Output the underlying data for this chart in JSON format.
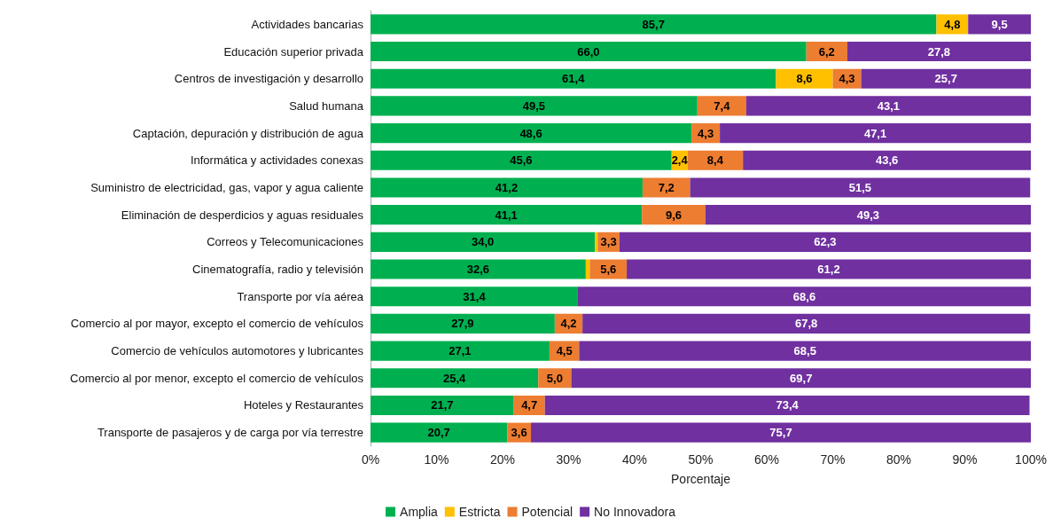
{
  "chart_data": {
    "type": "bar",
    "orientation": "horizontal",
    "stacked": true,
    "xlabel": "Porcentaje",
    "legend": "bottom",
    "grid": false,
    "categories": [
      "Actividades bancarias",
      "Educación superior privada",
      "Centros de investigación y desarrollo",
      "Salud humana",
      "Captación, depuración y distribución de agua",
      "Informática y actividades conexas",
      "Suministro de electricidad, gas, vapor y agua caliente",
      "Eliminación de desperdicios y aguas residuales",
      "Correos y Telecomunicaciones",
      "Cinematografía, radio y televisión",
      "Transporte por vía aérea",
      "Comercio al por mayor, excepto el comercio de vehículos",
      "Comercio de vehículos automotores y lubricantes",
      "Comercio al por menor, excepto el comercio de vehículos",
      "Hoteles y Restaurantes",
      "Transporte de pasajeros y de carga por vía terrestre"
    ],
    "xlim": [
      0,
      100
    ],
    "xticks": [
      {
        "value": 0,
        "label": "0%"
      },
      {
        "value": 10,
        "label": "10%"
      },
      {
        "value": 20,
        "label": "20%"
      },
      {
        "value": 30,
        "label": "30%"
      },
      {
        "value": 40,
        "label": "40%"
      },
      {
        "value": 50,
        "label": "50%"
      },
      {
        "value": 60,
        "label": "60%"
      },
      {
        "value": 70,
        "label": "70%"
      },
      {
        "value": 80,
        "label": "80%"
      },
      {
        "value": 90,
        "label": "90%"
      },
      {
        "value": 100,
        "label": "100%"
      }
    ],
    "series": [
      {
        "name": "Amplia",
        "color": "#00b050",
        "values": [
          85.7,
          66.0,
          61.4,
          49.5,
          48.6,
          45.6,
          41.2,
          41.1,
          34.0,
          32.6,
          31.4,
          27.9,
          27.1,
          25.4,
          21.7,
          20.7
        ],
        "value_labels": [
          "85,7",
          "66,0",
          "61,4",
          "49,5",
          "48,6",
          "45,6",
          "41,2",
          "41,1",
          "34,0",
          "32,6",
          "31,4",
          "27,9",
          "27,1",
          "25,4",
          "21,7",
          "20,7"
        ]
      },
      {
        "name": "Estricta",
        "color": "#ffc000",
        "values": [
          4.8,
          null,
          8.6,
          null,
          null,
          2.4,
          null,
          null,
          0.4,
          0.6,
          null,
          null,
          null,
          null,
          null,
          null
        ],
        "value_labels": [
          "4,8",
          null,
          "8,6",
          null,
          null,
          "2,4",
          null,
          null,
          null,
          null,
          null,
          null,
          null,
          null,
          null,
          null
        ]
      },
      {
        "name": "Potencial",
        "color": "#ed7d31",
        "values": [
          null,
          6.2,
          4.3,
          7.4,
          4.3,
          8.4,
          7.2,
          9.6,
          3.3,
          5.6,
          null,
          4.2,
          4.5,
          5.0,
          4.7,
          3.6
        ],
        "value_labels": [
          null,
          "6,2",
          "4,3",
          "7,4",
          "4,3",
          "8,4",
          "7,2",
          "9,6",
          "3,3",
          "5,6",
          null,
          "4,2",
          "4,5",
          "5,0",
          "4,7",
          "3,6"
        ]
      },
      {
        "name": "No Innovadora",
        "color": "#7030a0",
        "values": [
          9.5,
          27.8,
          25.7,
          43.1,
          47.1,
          43.6,
          51.5,
          49.3,
          62.3,
          61.2,
          68.6,
          67.8,
          68.5,
          69.7,
          73.4,
          75.7
        ],
        "value_labels": [
          "9,5",
          "27,8",
          "25,7",
          "43,1",
          "47,1",
          "43,6",
          "51,5",
          "49,3",
          "62,3",
          "61,2",
          "68,6",
          "67,8",
          "68,5",
          "69,7",
          "73,4",
          "75,7"
        ]
      }
    ]
  }
}
